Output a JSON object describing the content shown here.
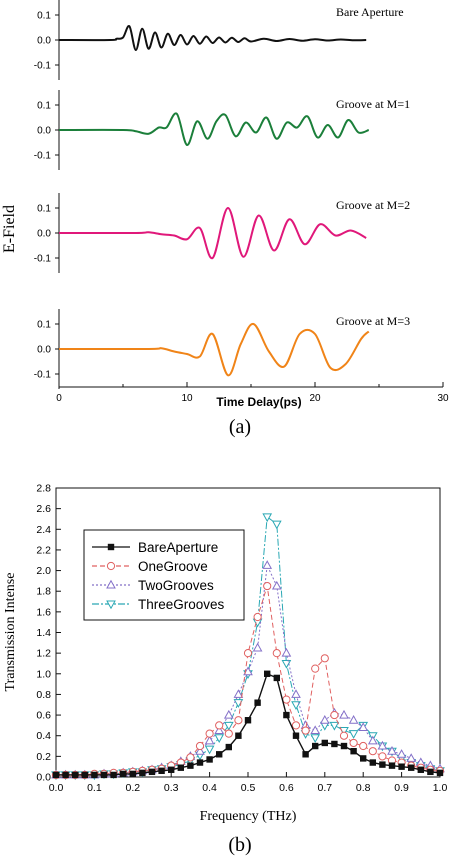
{
  "figure_a": {
    "panel_label": "(a)",
    "ylabel": "E-Field",
    "xlabel": "Time Delay(ps)",
    "xlim": [
      0,
      30
    ],
    "x_ticks": [
      "0",
      "10",
      "20",
      "30"
    ],
    "ylim": [
      -0.15,
      0.15
    ],
    "y_ticks": [
      "0.1",
      "0.0",
      "-0.1"
    ]
  },
  "figure_b": {
    "panel_label": "(b)"
  },
  "chart_data": [
    {
      "type": "line",
      "panel": "(a)",
      "xlabel": "Time Delay(ps)",
      "ylabel": "E-Field",
      "xlim": [
        0,
        30
      ],
      "ylim": [
        -0.15,
        0.15
      ],
      "grid": false,
      "series": [
        {
          "name": "Bare Aperture",
          "color": "#111111",
          "x": [
            0,
            4.0,
            4.5,
            5.0,
            5.5,
            6.0,
            6.5,
            7.0,
            7.5,
            8.0,
            8.5,
            9.0,
            9.5,
            10.0,
            10.5,
            11.0,
            11.5,
            12.0,
            12.5,
            13.0,
            13.5,
            14.0,
            14.5,
            15.0,
            16,
            17,
            18,
            19,
            20,
            21,
            22,
            23,
            24
          ],
          "y": [
            0,
            0,
            0.005,
            0.01,
            0.055,
            -0.04,
            0.045,
            -0.035,
            0.03,
            -0.03,
            0.025,
            -0.02,
            0.02,
            -0.018,
            0.016,
            -0.015,
            0.014,
            -0.012,
            0.01,
            -0.01,
            0.009,
            -0.008,
            0.007,
            -0.006,
            0.005,
            -0.004,
            0.004,
            -0.003,
            0.003,
            -0.002,
            0.002,
            -0.001,
            0
          ]
        },
        {
          "name": "Groove at M=1",
          "color": "#1b7f3a",
          "x": [
            0,
            5.0,
            6.0,
            7.0,
            7.8,
            8.4,
            9.2,
            10.0,
            10.8,
            11.6,
            12.3,
            13.0,
            13.8,
            14.6,
            15.4,
            16.2,
            17.0,
            17.8,
            18.6,
            19.4,
            20.2,
            21.0,
            21.8,
            22.6,
            23.4,
            24.2
          ],
          "y": [
            0,
            0,
            -0.005,
            -0.015,
            0.01,
            0.01,
            0.065,
            -0.06,
            0.035,
            -0.035,
            0.035,
            0.06,
            -0.025,
            0.03,
            -0.01,
            0.05,
            -0.035,
            0.03,
            0.01,
            0.055,
            -0.03,
            0.02,
            -0.03,
            0.04,
            -0.01,
            0
          ]
        },
        {
          "name": "Groove at M=2",
          "color": "#e0187a",
          "x": [
            0,
            6.0,
            7.0,
            8.0,
            9.0,
            10.0,
            11.0,
            12.0,
            13.2,
            14.4,
            15.6,
            16.8,
            18.0,
            19.2,
            20.4,
            21.6,
            22.8,
            24.0
          ],
          "y": [
            0,
            0,
            0.003,
            -0.005,
            -0.01,
            -0.025,
            0.02,
            -0.1,
            0.1,
            -0.095,
            0.07,
            -0.07,
            0.055,
            -0.045,
            0.035,
            -0.01,
            0.01,
            -0.02
          ]
        },
        {
          "name": "Groove at M=3",
          "color": "#f08418",
          "x": [
            0,
            7.0,
            8.0,
            9.0,
            10.0,
            11.0,
            12.0,
            13.2,
            14.2,
            15.2,
            16.4,
            17.6,
            18.8,
            20.0,
            21.2,
            22.4,
            23.6,
            24.2
          ],
          "y": [
            0,
            0,
            0.003,
            -0.01,
            -0.02,
            -0.03,
            0.06,
            -0.105,
            0.02,
            0.1,
            -0.01,
            -0.07,
            0.06,
            0.06,
            -0.075,
            -0.06,
            0.04,
            0.07
          ]
        }
      ]
    },
    {
      "type": "line",
      "panel": "(b)",
      "xlabel": "Frequency (THz)",
      "ylabel": "Transmission Intense",
      "xlim": [
        0.0,
        1.0
      ],
      "ylim": [
        0.0,
        2.8
      ],
      "x_ticks": [
        "0.0",
        "0.1",
        "0.2",
        "0.3",
        "0.4",
        "0.5",
        "0.6",
        "0.7",
        "0.8",
        "0.9",
        "1.0"
      ],
      "y_ticks": [
        "0.0",
        "0.2",
        "0.4",
        "0.6",
        "0.8",
        "1.0",
        "1.2",
        "1.4",
        "1.6",
        "1.8",
        "2.0",
        "2.2",
        "2.4",
        "2.6",
        "2.8"
      ],
      "legend_position": "top-left",
      "grid": false,
      "x": [
        0.0,
        0.025,
        0.05,
        0.075,
        0.1,
        0.125,
        0.15,
        0.175,
        0.2,
        0.225,
        0.25,
        0.275,
        0.3,
        0.325,
        0.35,
        0.375,
        0.4,
        0.425,
        0.45,
        0.475,
        0.5,
        0.525,
        0.55,
        0.575,
        0.6,
        0.625,
        0.65,
        0.675,
        0.7,
        0.725,
        0.75,
        0.775,
        0.8,
        0.825,
        0.85,
        0.875,
        0.9,
        0.925,
        0.95,
        0.975,
        1.0
      ],
      "series": [
        {
          "name": "BareAperture",
          "color": "#111111",
          "marker": "square-filled",
          "values": [
            0.02,
            0.02,
            0.02,
            0.02,
            0.02,
            0.02,
            0.02,
            0.03,
            0.03,
            0.04,
            0.05,
            0.06,
            0.07,
            0.09,
            0.11,
            0.14,
            0.17,
            0.22,
            0.29,
            0.4,
            0.55,
            0.72,
            1.0,
            0.96,
            0.6,
            0.4,
            0.22,
            0.3,
            0.33,
            0.32,
            0.3,
            0.25,
            0.18,
            0.14,
            0.12,
            0.11,
            0.1,
            0.09,
            0.07,
            0.05,
            0.04
          ]
        },
        {
          "name": "OneGroove",
          "color": "#e06060",
          "marker": "circle-open",
          "values": [
            0.02,
            0.02,
            0.02,
            0.02,
            0.03,
            0.03,
            0.04,
            0.04,
            0.05,
            0.06,
            0.07,
            0.08,
            0.11,
            0.14,
            0.19,
            0.3,
            0.42,
            0.5,
            0.42,
            0.55,
            1.2,
            1.55,
            1.85,
            1.2,
            0.75,
            0.5,
            0.45,
            1.05,
            1.15,
            0.6,
            0.4,
            0.33,
            0.3,
            0.25,
            0.2,
            0.16,
            0.14,
            0.11,
            0.09,
            0.07,
            0.06
          ]
        },
        {
          "name": "TwoGrooves",
          "color": "#8470c8",
          "marker": "triangle-up-open",
          "values": [
            0.02,
            0.02,
            0.02,
            0.02,
            0.02,
            0.03,
            0.03,
            0.04,
            0.05,
            0.06,
            0.07,
            0.09,
            0.11,
            0.15,
            0.2,
            0.25,
            0.35,
            0.45,
            0.6,
            0.8,
            1.02,
            1.25,
            2.05,
            1.85,
            1.2,
            0.8,
            0.5,
            0.45,
            0.55,
            0.62,
            0.6,
            0.55,
            0.48,
            0.35,
            0.3,
            0.25,
            0.22,
            0.18,
            0.14,
            0.11,
            0.08
          ]
        },
        {
          "name": "ThreeGrooves",
          "color": "#2aa8b4",
          "marker": "triangle-down-open",
          "values": [
            0.02,
            0.02,
            0.02,
            0.02,
            0.02,
            0.03,
            0.03,
            0.04,
            0.05,
            0.05,
            0.07,
            0.08,
            0.1,
            0.12,
            0.16,
            0.21,
            0.27,
            0.38,
            0.5,
            0.72,
            1.0,
            1.5,
            2.52,
            2.45,
            1.1,
            0.7,
            0.42,
            0.38,
            0.5,
            0.5,
            0.45,
            0.42,
            0.5,
            0.4,
            0.3,
            0.25,
            0.18,
            0.14,
            0.11,
            0.08,
            0.06
          ]
        }
      ]
    }
  ]
}
